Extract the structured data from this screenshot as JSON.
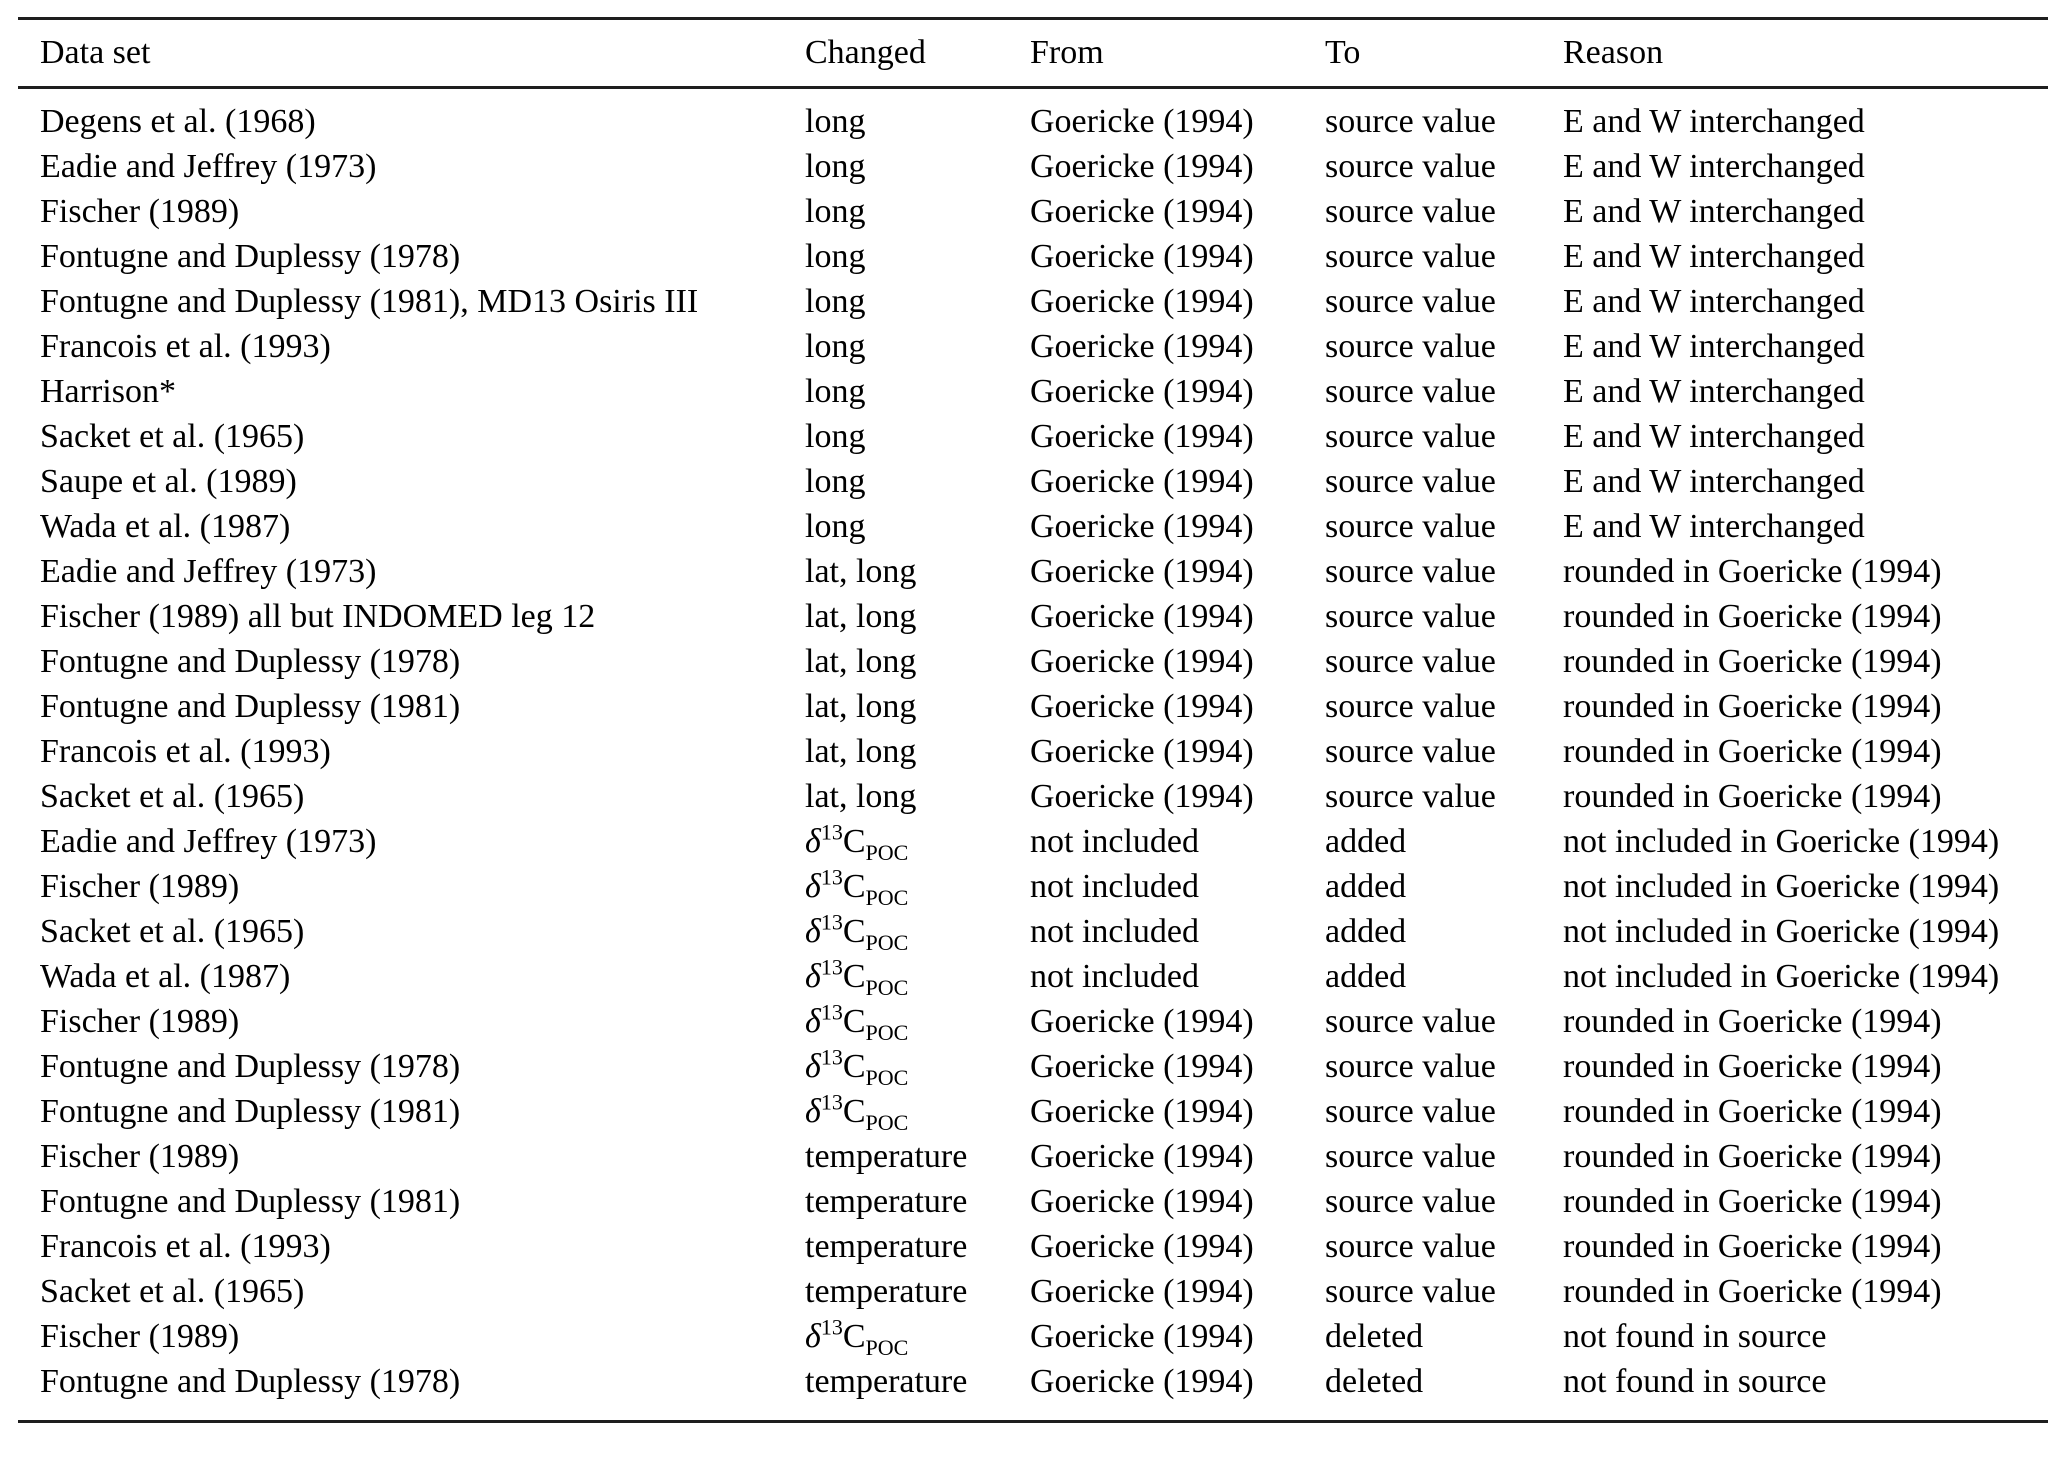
{
  "table": {
    "columns": [
      "Data set",
      "Changed",
      "From",
      "To",
      "Reason"
    ],
    "rows": [
      [
        "Degens et al. (1968)",
        "long",
        "Goericke (1994)",
        "source value",
        "E and W interchanged"
      ],
      [
        "Eadie and Jeffrey (1973)",
        "long",
        "Goericke (1994)",
        "source value",
        "E and W interchanged"
      ],
      [
        "Fischer (1989)",
        "long",
        "Goericke (1994)",
        "source value",
        "E and W interchanged"
      ],
      [
        "Fontugne and Duplessy (1978)",
        "long",
        "Goericke (1994)",
        "source value",
        "E and W interchanged"
      ],
      [
        "Fontugne and Duplessy (1981), MD13 Osiris III",
        "long",
        "Goericke (1994)",
        "source value",
        "E and W interchanged"
      ],
      [
        "Francois et al. (1993)",
        "long",
        "Goericke (1994)",
        "source value",
        "E and W interchanged"
      ],
      [
        "Harrison*",
        "long",
        "Goericke (1994)",
        "source value",
        "E and W interchanged"
      ],
      [
        "Sacket et al. (1965)",
        "long",
        "Goericke (1994)",
        "source value",
        "E and W interchanged"
      ],
      [
        "Saupe et al. (1989)",
        "long",
        "Goericke (1994)",
        "source value",
        "E and W interchanged"
      ],
      [
        "Wada et al. (1987)",
        "long",
        "Goericke (1994)",
        "source value",
        "E and W interchanged"
      ],
      [
        "Eadie and Jeffrey (1973)",
        "lat, long",
        "Goericke (1994)",
        "source value",
        "rounded in Goericke (1994)"
      ],
      [
        "Fischer (1989) all but INDOMED leg 12",
        "lat, long",
        "Goericke (1994)",
        "source value",
        "rounded in Goericke (1994)"
      ],
      [
        "Fontugne and Duplessy (1978)",
        "lat, long",
        "Goericke (1994)",
        "source value",
        "rounded in Goericke (1994)"
      ],
      [
        "Fontugne and Duplessy (1981)",
        "lat, long",
        "Goericke (1994)",
        "source value",
        "rounded in Goericke (1994)"
      ],
      [
        "Francois et al. (1993)",
        "lat, long",
        "Goericke (1994)",
        "source value",
        "rounded in Goericke (1994)"
      ],
      [
        "Sacket et al. (1965)",
        "lat, long",
        "Goericke (1994)",
        "source value",
        "rounded in Goericke (1994)"
      ],
      [
        "Eadie and Jeffrey (1973)",
        "δ13C_POC",
        "not included",
        "added",
        "not included in Goericke (1994)"
      ],
      [
        "Fischer (1989)",
        "δ13C_POC",
        "not included",
        "added",
        "not included in Goericke (1994)"
      ],
      [
        "Sacket et al. (1965)",
        "δ13C_POC",
        "not included",
        "added",
        "not included in Goericke (1994)"
      ],
      [
        "Wada et al. (1987)",
        "δ13C_POC",
        "not included",
        "added",
        "not included in Goericke (1994)"
      ],
      [
        "Fischer (1989)",
        "δ13C_POC",
        "Goericke (1994)",
        "source value",
        "rounded in Goericke (1994)"
      ],
      [
        "Fontugne and Duplessy (1978)",
        "δ13C_POC",
        "Goericke (1994)",
        "source value",
        "rounded in Goericke (1994)"
      ],
      [
        "Fontugne and Duplessy (1981)",
        "δ13C_POC",
        "Goericke (1994)",
        "source value",
        "rounded in Goericke (1994)"
      ],
      [
        "Fischer (1989)",
        "temperature",
        "Goericke (1994)",
        "source value",
        "rounded in Goericke (1994)"
      ],
      [
        "Fontugne and Duplessy (1981)",
        "temperature",
        "Goericke (1994)",
        "source value",
        "rounded in Goericke (1994)"
      ],
      [
        "Francois et al. (1993)",
        "temperature",
        "Goericke (1994)",
        "source value",
        "rounded in Goericke (1994)"
      ],
      [
        "Sacket et al. (1965)",
        "temperature",
        "Goericke (1994)",
        "source value",
        "rounded in Goericke (1994)"
      ],
      [
        "Fischer (1989)",
        "δ13C_POC",
        "Goericke (1994)",
        "deleted",
        "not found in source"
      ],
      [
        "Fontugne and Duplessy (1978)",
        "temperature",
        "Goericke (1994)",
        "deleted",
        "not found in source"
      ]
    ]
  },
  "colors": {
    "text": "#000000",
    "rule": "#1e1e1e",
    "background": "#ffffff"
  }
}
